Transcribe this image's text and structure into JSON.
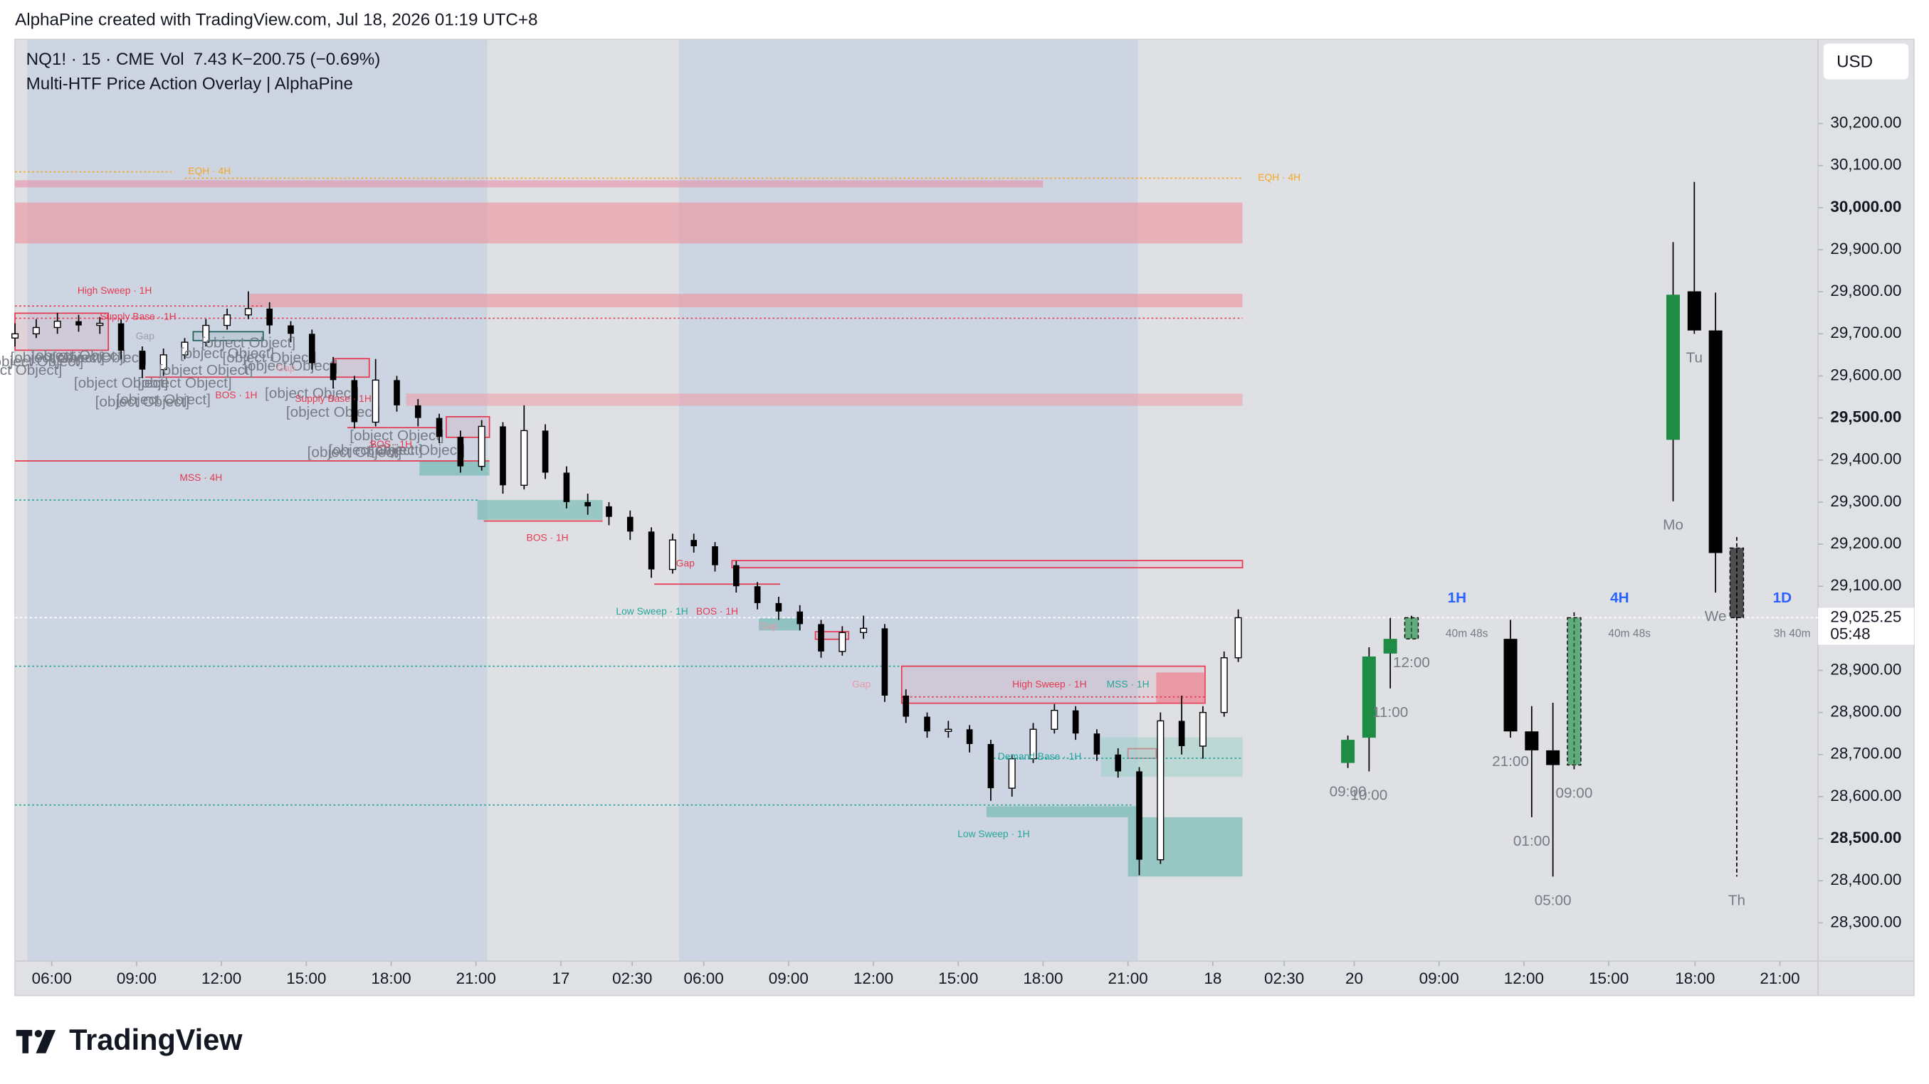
{
  "page": {
    "attribution": "AlphaPine created with TradingView.com, Jul 18, 2026 01:19 UTC+8",
    "brand": "TradingView"
  },
  "chart_data": [
    {
      "type": "candlestick",
      "symbol": "NQ1! · 15 · CME",
      "volume_label": "Vol",
      "volume": {
        "value": 7430,
        "label": "7.43 K"
      },
      "change": {
        "value": -200.75,
        "label": "−200.75 (−0.69%)"
      },
      "indicator": "Multi-HTF Price Action Overlay | AlphaPine",
      "currency": "USD",
      "last_price": {
        "value": 29025.25,
        "label": "29,025.25"
      },
      "countdown": "05:48",
      "up_color": "#ffffff",
      "down_color": "#000000",
      "xlim": [
        0,
        255
      ],
      "ylim": [
        28209,
        30400
      ],
      "xticks": [
        {
          "value": 5.2,
          "label": "06:00"
        },
        {
          "value": 17.2,
          "label": "09:00"
        },
        {
          "value": 29.2,
          "label": "12:00"
        },
        {
          "value": 41.2,
          "label": "15:00"
        },
        {
          "value": 53.2,
          "label": "18:00"
        },
        {
          "value": 65.2,
          "label": "21:00"
        },
        {
          "value": 77.2,
          "label": "17"
        },
        {
          "value": 87.3,
          "label": "02:30"
        },
        {
          "value": 97.4,
          "label": "06:00"
        },
        {
          "value": 109.4,
          "label": "09:00"
        },
        {
          "value": 121.4,
          "label": "12:00"
        },
        {
          "value": 133.4,
          "label": "15:00"
        },
        {
          "value": 145.4,
          "label": "18:00"
        },
        {
          "value": 157.4,
          "label": "21:00"
        },
        {
          "value": 169.4,
          "label": "18"
        },
        {
          "value": 179.5,
          "label": "02:30"
        },
        {
          "value": 189.4,
          "label": "20"
        },
        {
          "value": 201.4,
          "label": "09:00"
        },
        {
          "value": 213.4,
          "label": "12:00"
        },
        {
          "value": 225.4,
          "label": "15:00"
        },
        {
          "value": 237.6,
          "label": "18:00"
        },
        {
          "value": 249.6,
          "label": "21:00"
        }
      ],
      "yticks": [
        {
          "value": 28300,
          "label": "28,300.00"
        },
        {
          "value": 28400,
          "label": "28,400.00"
        },
        {
          "value": 28500,
          "label": "28,500.00"
        },
        {
          "value": 28600,
          "label": "28,600.00"
        },
        {
          "value": 28700,
          "label": "28,700.00"
        },
        {
          "value": 28800,
          "label": "28,800.00"
        },
        {
          "value": 28900,
          "label": "28,900.00"
        },
        {
          "value": 29100,
          "label": "29,100.00"
        },
        {
          "value": 29200,
          "label": "29,200.00"
        },
        {
          "value": 29300,
          "label": "29,300.00"
        },
        {
          "value": 29400,
          "label": "29,400.00"
        },
        {
          "value": 29500,
          "label": "29,500.00"
        },
        {
          "value": 29600,
          "label": "29,600.00"
        },
        {
          "value": 29700,
          "label": "29,700.00"
        },
        {
          "value": 29800,
          "label": "29,800.00"
        },
        {
          "value": 29900,
          "label": "29,900.00"
        },
        {
          "value": 30000,
          "label": "30,000.00"
        },
        {
          "value": 30100,
          "label": "30,100.00"
        },
        {
          "value": 30200,
          "label": "30,200.00"
        }
      ],
      "x": [
        0,
        3,
        6,
        9,
        12,
        15,
        18,
        21,
        24,
        27,
        30,
        33,
        36,
        39,
        42,
        45,
        48,
        51,
        54,
        57,
        60,
        63,
        66,
        69,
        72,
        75,
        78,
        81,
        84,
        87,
        90,
        93,
        96,
        99,
        102,
        105,
        108,
        111,
        114,
        117,
        120,
        123,
        126,
        129,
        132,
        135,
        138,
        141,
        144,
        147,
        150,
        153,
        156,
        159,
        162,
        165,
        168,
        171,
        173
      ],
      "open": [
        29690,
        29700,
        29715,
        29730,
        29720,
        29725,
        29660,
        29615,
        29650,
        29680,
        29720,
        29745,
        29760,
        29720,
        29700,
        29630,
        29590,
        29490,
        29590,
        29530,
        29500,
        29455,
        29385,
        29480,
        29340,
        29470,
        29370,
        29300,
        29290,
        29265,
        29230,
        29140,
        29210,
        29195,
        29150,
        29100,
        29060,
        29040,
        29010,
        28945,
        28990,
        29000,
        28840,
        28790,
        28755,
        28760,
        28725,
        28620,
        28690,
        28760,
        28805,
        28750,
        28700,
        28660,
        28450,
        28780,
        28720,
        28800,
        28930
      ],
      "high": [
        29725,
        29735,
        29750,
        29745,
        29740,
        29735,
        29670,
        29665,
        29690,
        29735,
        29760,
        29801,
        29775,
        29730,
        29710,
        29645,
        29600,
        29640,
        29600,
        29545,
        29510,
        29470,
        29495,
        29490,
        29530,
        29485,
        29385,
        29320,
        29300,
        29280,
        29240,
        29225,
        29225,
        29205,
        29160,
        29110,
        29075,
        29055,
        29020,
        29005,
        29030,
        29010,
        28855,
        28800,
        28780,
        28770,
        28735,
        28700,
        28775,
        28820,
        28815,
        28760,
        28715,
        28670,
        28800,
        28840,
        28815,
        28945,
        29045
      ],
      "low": [
        29670,
        29690,
        29700,
        29705,
        29700,
        29640,
        29595,
        29600,
        29640,
        29670,
        29710,
        29735,
        29700,
        29680,
        29615,
        29570,
        29475,
        29480,
        29515,
        29480,
        29440,
        29370,
        29375,
        29320,
        29330,
        29355,
        29285,
        29270,
        29245,
        29210,
        29120,
        29130,
        29180,
        29135,
        29085,
        29045,
        29020,
        28995,
        28930,
        28935,
        28975,
        28825,
        28775,
        28740,
        28740,
        28705,
        28590,
        28600,
        28680,
        28750,
        28735,
        28685,
        28645,
        28413,
        28440,
        28700,
        28690,
        28790,
        28920
      ],
      "close": [
        29700,
        29715,
        29730,
        29720,
        29725,
        29660,
        29615,
        29650,
        29680,
        29720,
        29745,
        29760,
        29720,
        29700,
        29630,
        29590,
        29490,
        29590,
        29530,
        29500,
        29455,
        29385,
        29480,
        29340,
        29470,
        29370,
        29300,
        29290,
        29265,
        29230,
        29140,
        29210,
        29195,
        29150,
        29100,
        29060,
        29040,
        29010,
        28945,
        28990,
        29000,
        28840,
        28790,
        28755,
        28760,
        28725,
        28620,
        28690,
        28760,
        28805,
        28750,
        28700,
        28660,
        28450,
        28780,
        28720,
        28800,
        28930,
        29025.25
      ],
      "zones": [
        {
          "x0": 0,
          "x1": 145.4,
          "low": 30048,
          "high": 30065,
          "color": "#e98aa6",
          "filled": true
        },
        {
          "x0": 0,
          "x1": 173.6,
          "low": 29915,
          "high": 30012,
          "color": "#ee8a96",
          "filled": true
        },
        {
          "x0": 33.2,
          "x1": 173.6,
          "low": 29763,
          "high": 29795,
          "color": "#ee8a96",
          "filled": true
        },
        {
          "x0": 55.3,
          "x1": 173.6,
          "low": 29529,
          "high": 29558,
          "color": "#ee9aa6",
          "filled": true
        },
        {
          "x0": 101.4,
          "x1": 173.6,
          "low": 29144,
          "high": 29161,
          "color": "#e53950",
          "filled": false
        },
        {
          "x0": 125.4,
          "x1": 168.3,
          "low": 28822,
          "high": 28910,
          "color": "#e53950",
          "filled": false
        },
        {
          "x0": 0,
          "x1": 13.2,
          "low": 29661,
          "high": 29749,
          "color": "#e53950",
          "filled": false
        },
        {
          "x0": 45.2,
          "x1": 50.1,
          "low": 29597,
          "high": 29641,
          "color": "#e53950",
          "filled": false
        },
        {
          "x0": 61,
          "x1": 67.1,
          "low": 29454,
          "high": 29503,
          "color": "#e53950",
          "filled": false
        },
        {
          "x0": 113.2,
          "x1": 117.9,
          "low": 28974,
          "high": 28992,
          "color": "#e53950",
          "filled": false
        },
        {
          "x0": 157.4,
          "x1": 161.4,
          "low": 28691,
          "high": 28714,
          "color": "#e53950",
          "filled": false
        },
        {
          "x0": 161.4,
          "x1": 168.3,
          "low": 28822,
          "high": 28895,
          "color": "#ee6a7a",
          "filled": true
        },
        {
          "x0": 57.2,
          "x1": 67.1,
          "low": 29363,
          "high": 29398,
          "color": "#5fb3a8",
          "filled": true
        },
        {
          "x0": 65.4,
          "x1": 83.1,
          "low": 29258,
          "high": 29305,
          "color": "#5fb3a8",
          "filled": true
        },
        {
          "x0": 105.2,
          "x1": 111,
          "low": 28995,
          "high": 29024,
          "color": "#5fb3a8",
          "filled": true
        },
        {
          "x0": 137.4,
          "x1": 158.8,
          "low": 28551,
          "high": 28577,
          "color": "#5fb3a8",
          "filled": true
        },
        {
          "x0": 157.4,
          "x1": 173.6,
          "low": 28410,
          "high": 28551,
          "color": "#5fb3a8",
          "filled": true
        },
        {
          "x0": 153.6,
          "x1": 173.6,
          "low": 28647,
          "high": 28741,
          "color": "#9fd0c6",
          "filled": true
        },
        {
          "x0": 25.2,
          "x1": 35.1,
          "low": 29684,
          "high": 29705,
          "color": "#1f5f5a",
          "filled": false
        }
      ],
      "levels": [
        {
          "price": 30085,
          "x0": 0,
          "x1": 22.3,
          "color": "#f5a623",
          "style": "dotted"
        },
        {
          "price": 30070,
          "x0": 24,
          "x1": 173.6,
          "color": "#f5a623",
          "style": "dotted"
        },
        {
          "price": 29766,
          "x0": 0,
          "x1": 35.3,
          "color": "#e53950",
          "style": "dotted"
        },
        {
          "price": 29737,
          "x0": 0,
          "x1": 173.6,
          "color": "#e53950",
          "style": "dotted"
        },
        {
          "price": 29597,
          "x0": 18.4,
          "x1": 44.9,
          "color": "#e53950",
          "style": "solid"
        },
        {
          "price": 29398,
          "x0": 0,
          "x1": 67.1,
          "color": "#e53950",
          "style": "solid"
        },
        {
          "price": 29305,
          "x0": 0,
          "x1": 65.4,
          "color": "#26a69a",
          "style": "dotted"
        },
        {
          "price": 29477,
          "x0": 47,
          "x1": 59.8,
          "color": "#e53950",
          "style": "solid"
        },
        {
          "price": 29255,
          "x0": 66.3,
          "x1": 83.1,
          "color": "#e53950",
          "style": "solid"
        },
        {
          "price": 29105,
          "x0": 90.4,
          "x1": 108.2,
          "color": "#e53950",
          "style": "solid"
        },
        {
          "price": 28910,
          "x0": 0,
          "x1": 125.4,
          "color": "#26a69a",
          "style": "dotted"
        },
        {
          "price": 28580,
          "x0": 0,
          "x1": 157.9,
          "color": "#26a69a",
          "style": "dotted"
        },
        {
          "price": 28837,
          "x0": 125.4,
          "x1": 168.3,
          "color": "#e53950",
          "style": "dotted"
        },
        {
          "price": 28691,
          "x0": 138.4,
          "x1": 173.6,
          "color": "#26a69a",
          "style": "dotted"
        }
      ],
      "labels": [
        {
          "text": "EQH · 4H",
          "x": 27.5,
          "price": 30085,
          "color": "#f5a623"
        },
        {
          "text": "EQH · 4H",
          "x": 178.8,
          "price": 30070,
          "color": "#f5a623"
        },
        {
          "text": "High Sweep · 1H",
          "x": 14.1,
          "price": 29801,
          "color": "#e53950"
        },
        {
          "text": "Supply Base · 1H",
          "x": 17.4,
          "price": 29740,
          "color": "#e53950"
        },
        {
          "text": "Gap",
          "x": 18.4,
          "price": 29693,
          "color": "#9aa0aa"
        },
        {
          "text": "Gap",
          "x": 38.3,
          "price": 29617,
          "color": "#e89aa8"
        },
        {
          "text": "BOS · 1H",
          "x": 31.3,
          "price": 29553,
          "color": "#e53950"
        },
        {
          "text": "Supply Base · 1H",
          "x": 45,
          "price": 29544,
          "color": "#e53950"
        },
        {
          "text": "BOS · 1H",
          "x": 53.2,
          "price": 29436,
          "color": "#e53950"
        },
        {
          "text": "MSS · 4H",
          "x": 26.3,
          "price": 29357,
          "color": "#e53950"
        },
        {
          "text": "BOS · 1H",
          "x": 75.3,
          "price": 29214,
          "color": "#e53950"
        },
        {
          "text": "Gap",
          "x": 94.8,
          "price": 29153,
          "color": "#e53950"
        },
        {
          "text": "Low Sweep · 1H",
          "x": 90.1,
          "price": 29039,
          "color": "#26a69a"
        },
        {
          "text": "BOS · 1H",
          "x": 99.3,
          "price": 29039,
          "color": "#e53950"
        },
        {
          "text": "Gap",
          "x": 106.6,
          "price": 29004,
          "color": "#e89aa8"
        },
        {
          "text": "Gap",
          "x": 119.7,
          "price": 28866,
          "color": "#e89aa8"
        },
        {
          "text": "High Sweep · 1H",
          "x": 146.3,
          "price": 28866,
          "color": "#e53950"
        },
        {
          "text": "MSS · 1H",
          "x": 157.4,
          "price": 28866,
          "color": "#26a69a"
        },
        {
          "text": "Demand Base · 1H",
          "x": 144.9,
          "price": 28694,
          "color": "#26a69a"
        },
        {
          "text": "Low Sweep · 1H",
          "x": 138.4,
          "price": 28510,
          "color": "#26a69a"
        }
      ]
    },
    {
      "type": "candlestick",
      "title": "1H",
      "countdown": "40m 48s",
      "up_color": "#1e8c45",
      "down_color": "#000000",
      "x": [
        188.5,
        191.5,
        194.5,
        197.5
      ],
      "open": [
        28680,
        28740,
        28940,
        28975
      ],
      "high": [
        28745,
        28955,
        29025,
        29030
      ],
      "low": [
        28668,
        28660,
        28857,
        28975
      ],
      "close": [
        28735,
        28933,
        28975,
        29025.25
      ],
      "labels": [
        "09:00",
        "10:00",
        "11:00",
        "12:00"
      ]
    },
    {
      "type": "candlestick",
      "title": "4H",
      "countdown": "40m 48s",
      "up_color": "#1e8c45",
      "down_color": "#000000",
      "x": [
        211.5,
        214.5,
        217.5,
        220.5
      ],
      "open": [
        28975,
        28755,
        28710,
        28675
      ],
      "high": [
        29020,
        28815,
        28823,
        29038
      ],
      "low": [
        28740,
        28551,
        28410,
        28665
      ],
      "close": [
        28755,
        28710,
        28675,
        29025.25
      ],
      "labels": [
        "21:00",
        "01:00",
        "05:00",
        "09:00"
      ]
    },
    {
      "type": "candlestick",
      "title": "1D",
      "countdown": "3h 40m",
      "up_color": "#1e8c45",
      "down_color": "#000000",
      "x": [
        234.5,
        237.5,
        240.5,
        243.5
      ],
      "open": [
        29448,
        29801,
        29708,
        29191
      ],
      "high": [
        29918,
        30061,
        29798,
        29217
      ],
      "low": [
        29302,
        29700,
        29085,
        28410
      ],
      "close": [
        29793,
        29708,
        29179,
        29025.25
      ],
      "labels": [
        "Mo",
        "Tu",
        "We",
        "Th"
      ]
    }
  ]
}
